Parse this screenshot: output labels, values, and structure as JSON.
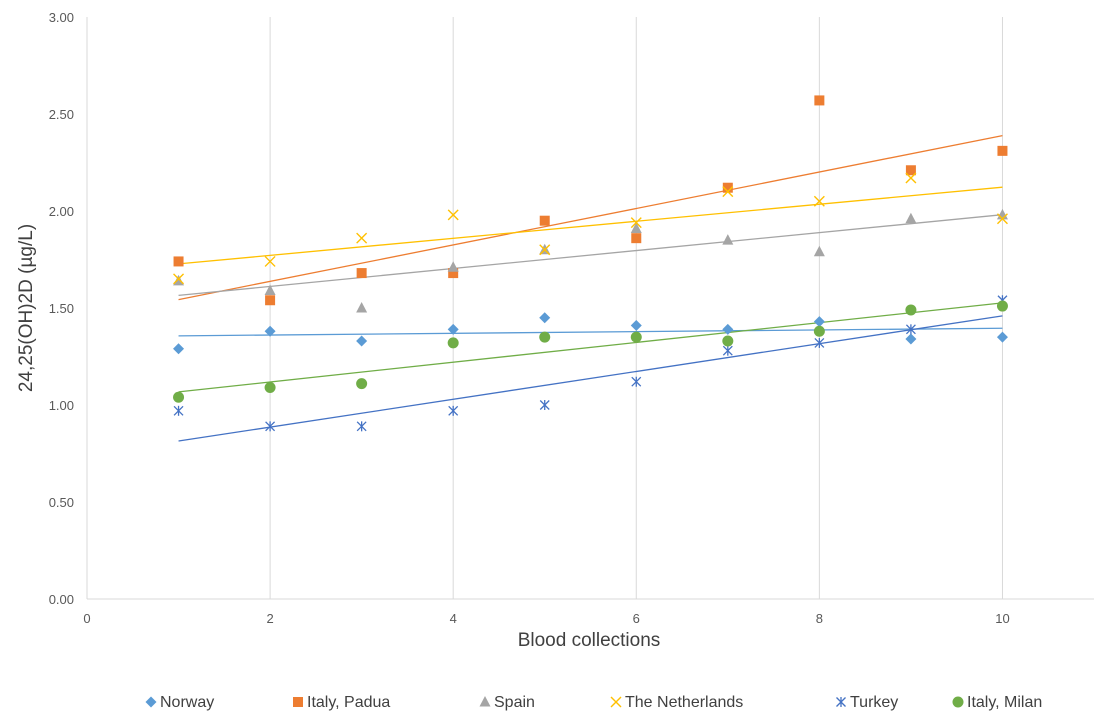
{
  "chart_data": {
    "type": "scatter",
    "title": "",
    "xlabel": "Blood collections",
    "ylabel": "24,25(OH)2D (µg/L)",
    "xlim": [
      0,
      11
    ],
    "ylim": [
      0,
      3
    ],
    "x_ticks": [
      "0",
      "2",
      "4",
      "6",
      "8",
      "10"
    ],
    "y_ticks": [
      "0.00",
      "0.50",
      "1.00",
      "1.50",
      "2.00",
      "2.50",
      "3.00"
    ],
    "grid": "vertical",
    "legend_position": "bottom",
    "trendlines": "linear",
    "series": [
      {
        "name": "Norway",
        "marker": "diamond",
        "color": "#5B9BD5",
        "x": [
          1,
          2,
          3,
          4,
          5,
          6,
          7,
          8,
          9,
          10
        ],
        "y": [
          1.29,
          1.38,
          1.33,
          1.39,
          1.45,
          1.41,
          1.39,
          1.43,
          1.34,
          1.35
        ]
      },
      {
        "name": "Italy, Padua",
        "marker": "square",
        "color": "#ED7D31",
        "x": [
          1,
          2,
          3,
          4,
          5,
          6,
          7,
          8,
          9,
          10
        ],
        "y": [
          1.74,
          1.54,
          1.68,
          1.68,
          1.95,
          1.86,
          2.12,
          2.57,
          2.21,
          2.31
        ]
      },
      {
        "name": "Spain",
        "marker": "triangle",
        "color": "#A5A5A5",
        "x": [
          1,
          2,
          3,
          4,
          5,
          6,
          7,
          8,
          9,
          10
        ],
        "y": [
          1.64,
          1.59,
          1.5,
          1.71,
          1.8,
          1.91,
          1.85,
          1.79,
          1.96,
          1.98
        ]
      },
      {
        "name": "The Netherlands",
        "marker": "x",
        "color": "#FFC000",
        "x": [
          1,
          2,
          3,
          4,
          5,
          6,
          7,
          8,
          9,
          10
        ],
        "y": [
          1.65,
          1.74,
          1.86,
          1.98,
          1.8,
          1.94,
          2.1,
          2.05,
          2.17,
          1.96
        ]
      },
      {
        "name": "Turkey",
        "marker": "star",
        "color": "#4472C4",
        "x": [
          1,
          2,
          3,
          4,
          5,
          6,
          7,
          8,
          9,
          10
        ],
        "y": [
          0.97,
          0.89,
          0.89,
          0.97,
          1.0,
          1.12,
          1.28,
          1.32,
          1.39,
          1.54
        ]
      },
      {
        "name": "Italy, Milan",
        "marker": "circle",
        "color": "#70AD47",
        "x": [
          1,
          2,
          3,
          4,
          5,
          6,
          7,
          8,
          9,
          10
        ],
        "y": [
          1.04,
          1.09,
          1.11,
          1.32,
          1.35,
          1.35,
          1.33,
          1.38,
          1.49,
          1.51
        ]
      }
    ]
  }
}
